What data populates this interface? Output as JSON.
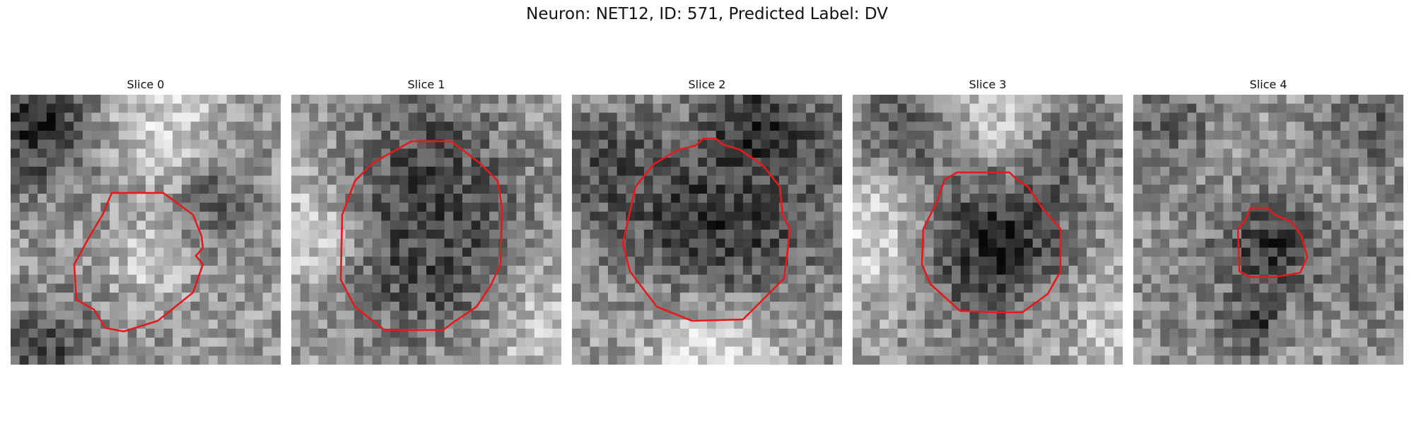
{
  "figure": {
    "title": "Neuron: NET12, ID: 571, Predicted Label: DV",
    "contour_color": "#e41a1c",
    "colormap": "grayscale"
  },
  "panels": [
    {
      "title": "Slice 0"
    },
    {
      "title": "Slice 1"
    },
    {
      "title": "Slice 2"
    },
    {
      "title": "Slice 3"
    },
    {
      "title": "Slice 4"
    }
  ]
}
